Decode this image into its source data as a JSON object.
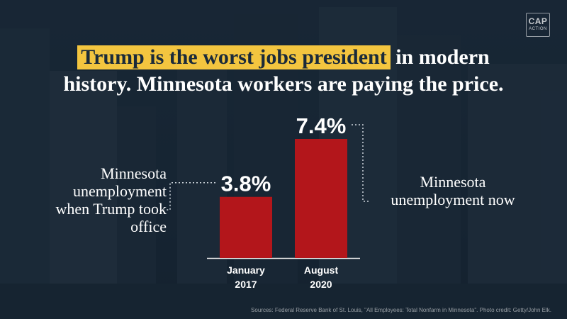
{
  "logo": {
    "line1": "CAP",
    "line2": "ACTION"
  },
  "headline": {
    "highlight": "Trump is the worst jobs president",
    "rest_line1": " in modern",
    "line2": "history. Minnesota workers are paying the price."
  },
  "annotations": {
    "left": "Minnesota unemployment when Trump took office",
    "right": "Minnesota unemployment now"
  },
  "source": "Sources: Federal Reserve Bank of St. Louis, \"All Employees: Total Nonfarm in Minnesota\". Photo credit: Getty/John Elk.",
  "colors": {
    "bar": "#b3161b",
    "highlight": "#f3c53f",
    "text": "#ffffff"
  },
  "chart_data": {
    "type": "bar",
    "categories": [
      "January 2017",
      "August 2020"
    ],
    "category_lines": [
      [
        "January",
        "2017"
      ],
      [
        "August",
        "2020"
      ]
    ],
    "values": [
      3.8,
      7.4
    ],
    "value_labels": [
      "3.8%",
      "7.4%"
    ],
    "unit": "%",
    "ylim": [
      0,
      7.4
    ],
    "grid": false
  }
}
